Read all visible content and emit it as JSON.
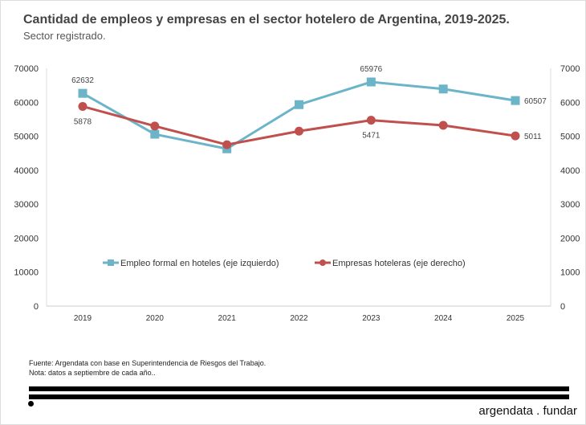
{
  "title": "Cantidad de empleos y empresas en el sector hotelero de Argentina, 2019-2025.",
  "subtitle": "Sector registrado.",
  "chart_data": {
    "type": "line",
    "x": [
      "2019",
      "2020",
      "2021",
      "2022",
      "2023",
      "2024",
      "2025"
    ],
    "series": [
      {
        "name": "Empleo formal en hoteles (eje izquierdo)",
        "axis": "left",
        "color": "#6cb4c8",
        "marker": "square",
        "values": [
          62632,
          50600,
          46300,
          59300,
          65976,
          63900,
          60507
        ],
        "labels": [
          "62632",
          "",
          "",
          "",
          "65976",
          "",
          "60507"
        ]
      },
      {
        "name": "Empresas hoteleras (eje derecho)",
        "axis": "right",
        "color": "#c0504d",
        "marker": "circle",
        "values": [
          5878,
          5300,
          4750,
          5150,
          5471,
          5320,
          5011
        ],
        "labels": [
          "5878",
          "",
          "",
          "",
          "5471",
          "",
          "5011"
        ]
      }
    ],
    "yleft": {
      "ylim": [
        0,
        70000
      ],
      "ticks": [
        "0",
        "10000",
        "20000",
        "30000",
        "40000",
        "50000",
        "60000",
        "70000"
      ]
    },
    "yright": {
      "ylim": [
        0,
        7000
      ],
      "ticks": [
        "0",
        "1000",
        "2000",
        "3000",
        "4000",
        "5000",
        "6000",
        "7000"
      ]
    },
    "legend": "center"
  },
  "footer": {
    "source": "Fuente: Argendata con base en Superintendencia de Riesgos del Trabajo.",
    "note": "Nota: datos a septiembre de cada año..",
    "brand": "argendata . fundar"
  }
}
